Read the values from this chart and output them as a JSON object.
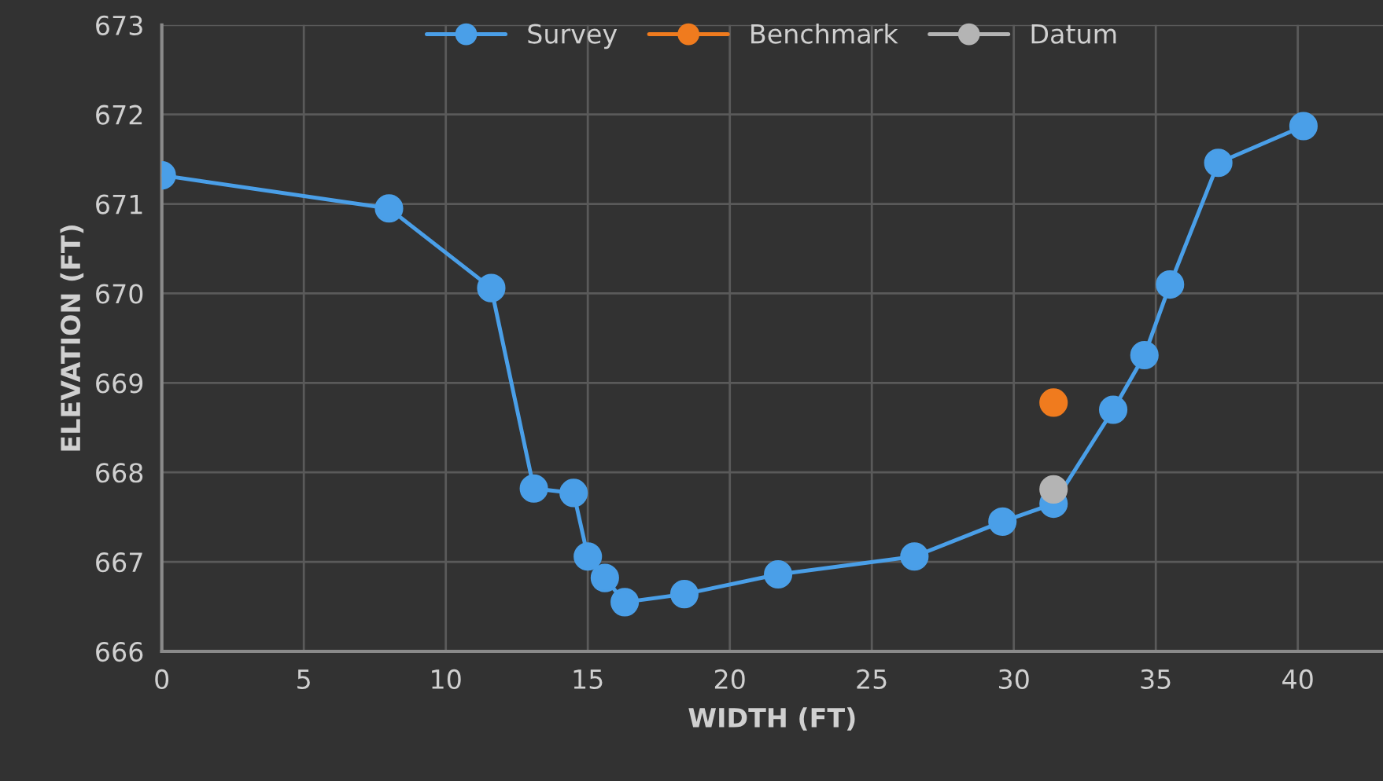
{
  "chart_data": {
    "type": "line",
    "xlabel": "WIDTH (FT)",
    "ylabel": "ELEVATION (FT)",
    "xlim": [
      0,
      43
    ],
    "xticks": [
      0,
      5,
      10,
      15,
      20,
      25,
      30,
      35,
      40
    ],
    "ylim": [
      666,
      673
    ],
    "yticks": [
      666,
      667,
      668,
      669,
      670,
      671,
      672,
      673
    ],
    "grid": true,
    "legend": "top",
    "marker": "circle",
    "line_style": "solid",
    "series": [
      {
        "name": "Survey",
        "color": "#4a9fe8",
        "x": [
          0,
          8.0,
          11.6,
          13.1,
          14.5,
          15.0,
          15.6,
          16.3,
          18.4,
          21.7,
          26.5,
          29.6,
          31.4,
          33.5,
          34.6,
          35.5,
          37.2,
          40.2
        ],
        "values": [
          671.32,
          670.95,
          670.06,
          667.82,
          667.77,
          667.06,
          666.82,
          666.55,
          666.64,
          666.86,
          667.06,
          667.45,
          667.65,
          668.7,
          669.31,
          670.1,
          671.46,
          671.87
        ]
      },
      {
        "name": "Benchmark",
        "color": "#f07b1e",
        "x": [
          31.4
        ],
        "values": [
          668.78
        ]
      },
      {
        "name": "Datum",
        "color": "#b4b4b4",
        "x": [
          31.4
        ],
        "values": [
          667.81
        ]
      }
    ]
  }
}
